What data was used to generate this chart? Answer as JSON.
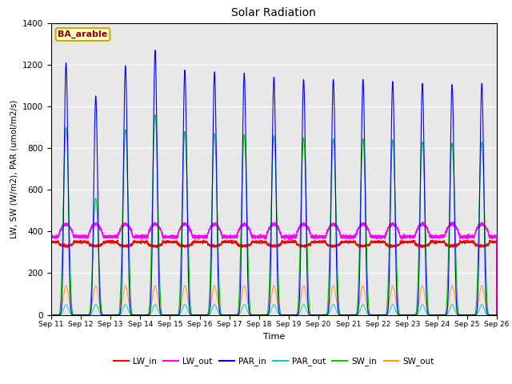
{
  "title": "Solar Radiation",
  "xlabel": "Time",
  "ylabel": "LW, SW (W/m2), PAR (umol/m2/s)",
  "site_label": "BA_arable",
  "ylim": [
    0,
    1400
  ],
  "colors": {
    "LW_in": "#ff0000",
    "LW_out": "#ff00ff",
    "PAR_in": "#0000ff",
    "PAR_out": "#00cccc",
    "SW_in": "#00cc00",
    "SW_out": "#ff9900"
  },
  "n_days": 15,
  "start_day": 11,
  "background_color": "#e8e8e8",
  "grid_color": "#ffffff",
  "par_peaks": [
    1210,
    1050,
    1195,
    1270,
    1175,
    1165,
    1160,
    1140,
    1130,
    1130,
    1130,
    1120,
    1110,
    1105,
    1110
  ],
  "sw_peaks": [
    900,
    560,
    890,
    960,
    880,
    870,
    865,
    860,
    850,
    845,
    845,
    840,
    830,
    825,
    830
  ]
}
